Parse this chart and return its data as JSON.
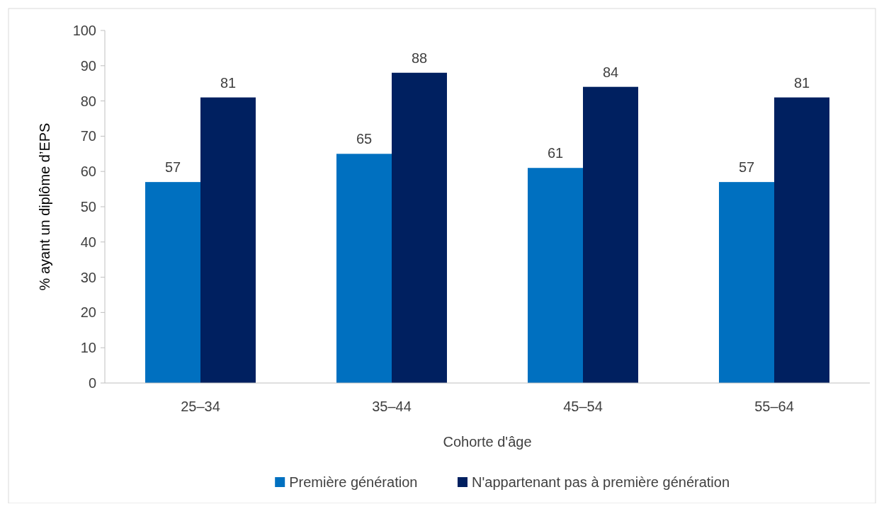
{
  "chart_data": {
    "type": "bar",
    "xlabel": "Cohorte d'âge",
    "ylabel": "% ayant un diplôme d’EPS",
    "categories": [
      "25–34",
      "35–44",
      "45–54",
      "55–64"
    ],
    "series": [
      {
        "name": "Première génération",
        "color": "#0070c0",
        "values": [
          57,
          65,
          61,
          57
        ]
      },
      {
        "name": "N'appartenant pas à première génération",
        "color": "#002060",
        "values": [
          81,
          88,
          84,
          81
        ]
      }
    ],
    "ylim": [
      0,
      100
    ],
    "yticks": [
      0,
      10,
      20,
      30,
      40,
      50,
      60,
      70,
      80,
      90,
      100
    ],
    "data_labels": true,
    "legend": "bottom"
  }
}
